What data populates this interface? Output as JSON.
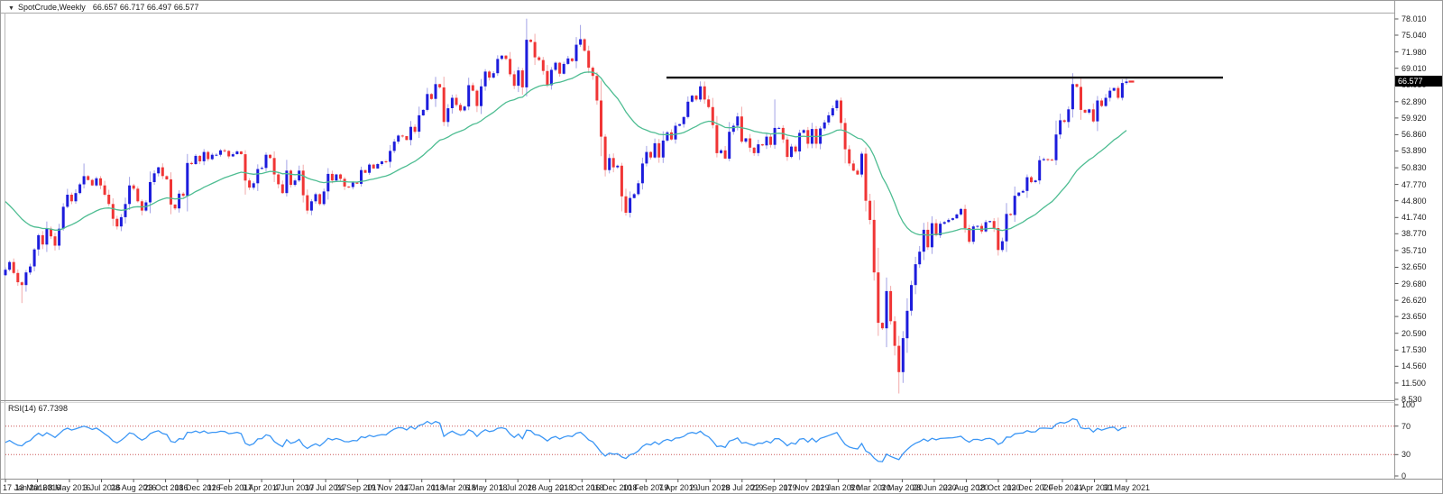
{
  "title": {
    "expander": "▼",
    "symbol": "SpotCrude,Weekly",
    "ohlc": "66.657 66.717 66.497 66.577"
  },
  "indicator": {
    "label": "RSI(14) 67.7398"
  },
  "price_axis": {
    "current": "66.577",
    "labels": [
      "78.010",
      "75.040",
      "71.980",
      "69.010",
      "65.950",
      "62.890",
      "59.920",
      "56.860",
      "53.890",
      "50.830",
      "47.770",
      "44.800",
      "41.740",
      "38.770",
      "35.710",
      "32.650",
      "29.680",
      "26.620",
      "23.650",
      "20.590",
      "17.530",
      "14.560",
      "11.500",
      "8.530"
    ]
  },
  "rsi_axis": {
    "labels": [
      "100",
      "70",
      "30",
      "0"
    ]
  },
  "time_axis": {
    "labels": [
      "17 Jan 2016",
      "13 Mar 2016",
      "8 May 2016",
      "3 Jul 2016",
      "28 Aug 2016",
      "23 Oct 2016",
      "18 Dec 2016",
      "12 Feb 2017",
      "9 Apr 2017",
      "4 Jun 2017",
      "30 Jul 2017",
      "24 Sep 2017",
      "19 Nov 2017",
      "14 Jan 2018",
      "11 Mar 2018",
      "6 May 2018",
      "1 Jul 2018",
      "26 Aug 2018",
      "21 Oct 2018",
      "16 Dec 2018",
      "10 Feb 2019",
      "7 Apr 2019",
      "2 Jun 2019",
      "28 Jul 2019",
      "22 Sep 2019",
      "17 Nov 2019",
      "12 Jan 2020",
      "8 Mar 2020",
      "3 May 2020",
      "28 Jun 2020",
      "23 Aug 2020",
      "18 Oct 2020",
      "13 Dec 2020",
      "7 Feb 2021",
      "4 Apr 2021",
      "30 May 2021"
    ]
  },
  "colors": {
    "bull_body": "#1c1cdc",
    "bear_body": "#f03535",
    "bull_wick": "#a2a2e6",
    "bear_wick": "#f2aaaa",
    "ma_line": "#4ebd92",
    "rsi_line": "#3b96f5",
    "level_line": "#cc5555",
    "trendline": "#151515",
    "border": "#909090",
    "tick": "#555555",
    "price_tag_bg": "#000000",
    "price_tag_text": "#ffffff"
  },
  "chart_data": {
    "type": "candlestick",
    "symbol": "SpotCrude",
    "timeframe": "Weekly",
    "title": "SpotCrude,Weekly",
    "ylim": [
      8.53,
      79.5
    ],
    "x_start_label": "17 Jan 2016",
    "x_end_label": "30 May 2021",
    "grid": false,
    "last_close": 66.577,
    "first_open": 31.2,
    "closes": [
      32.2,
      33.6,
      31.6,
      29.9,
      29.4,
      31.7,
      32.8,
      35.9,
      38.5,
      36.8,
      39.7,
      38.3,
      36.6,
      39.7,
      43.7,
      45.9,
      44.7,
      46.2,
      47.8,
      49.3,
      48.6,
      47.6,
      48.9,
      47.6,
      45.9,
      44.2,
      41.5,
      40.1,
      41.8,
      44.2,
      47.6,
      47.0,
      44.7,
      43.0,
      44.5,
      48.2,
      49.8,
      50.9,
      49.3,
      48.7,
      44.1,
      43.4,
      46.1,
      45.7,
      51.7,
      51.5,
      53.0,
      52.0,
      53.7,
      52.4,
      53.2,
      53.2,
      54.0,
      53.9,
      52.9,
      53.3,
      53.8,
      53.3,
      48.5,
      47.2,
      48.0,
      50.6,
      50.8,
      53.2,
      52.6,
      49.6,
      47.8,
      46.2,
      50.3,
      47.7,
      48.5,
      50.3,
      45.8,
      43.0,
      44.7,
      46.0,
      44.2,
      46.5,
      49.7,
      48.5,
      49.6,
      48.8,
      47.4,
      47.3,
      48.1,
      47.9,
      50.4,
      49.9,
      51.4,
      50.7,
      51.5,
      52.0,
      51.9,
      53.9,
      55.6,
      56.7,
      56.6,
      55.9,
      58.3,
      57.4,
      60.4,
      61.4,
      64.3,
      63.4,
      66.1,
      65.5,
      59.2,
      61.7,
      63.6,
      62.3,
      61.3,
      62.0,
      65.9,
      64.9,
      62.1,
      65.7,
      68.4,
      67.3,
      68.1,
      70.7,
      71.3,
      70.7,
      67.9,
      65.8,
      68.6,
      65.5,
      74.2,
      73.8,
      71.0,
      70.5,
      68.5,
      65.9,
      68.7,
      70.0,
      68.0,
      69.8,
      70.8,
      70.3,
      73.3,
      74.3,
      72.2,
      69.1,
      67.6,
      63.1,
      56.5,
      50.4,
      52.6,
      50.9,
      51.2,
      45.6,
      42.6,
      45.3,
      46.0,
      48.0,
      51.6,
      53.7,
      52.7,
      55.3,
      52.7,
      55.8,
      57.3,
      56.0,
      58.5,
      58.8,
      60.1,
      62.9,
      64.0,
      63.3,
      65.7,
      63.3,
      61.9,
      58.6,
      53.5,
      54.0,
      52.5,
      57.4,
      58.5,
      60.2,
      55.6,
      56.2,
      54.5,
      53.5,
      55.1,
      54.9,
      56.5,
      55.0,
      58.1,
      58.1,
      56.0,
      52.8,
      54.7,
      53.8,
      57.2,
      57.7,
      55.2,
      57.9,
      55.2,
      58.0,
      59.1,
      60.4,
      61.7,
      63.1,
      59.0,
      54.2,
      51.6,
      50.3,
      49.6,
      53.4,
      44.8,
      41.3,
      31.7,
      22.5,
      21.5,
      28.3,
      22.8,
      18.3,
      13.5,
      19.7,
      24.7,
      29.4,
      33.2,
      35.5,
      39.5,
      36.3,
      40.7,
      38.5,
      40.6,
      40.9,
      41.3,
      41.6,
      42.3,
      43.3,
      39.8,
      37.3,
      40.1,
      40.2,
      39.2,
      40.9,
      41.1,
      39.8,
      35.8,
      37.4,
      42.4,
      42.2,
      45.7,
      46.3,
      46.6,
      49.1,
      48.2,
      48.5,
      52.2,
      52.4,
      52.3,
      52.2,
      56.9,
      59.5,
      59.2,
      61.5,
      66.1,
      65.6,
      61.4,
      60.9,
      61.5,
      59.3,
      63.1,
      62.1,
      63.6,
      64.9,
      65.4,
      63.6,
      66.3,
      66.577
    ],
    "extremes": [
      {
        "i": 4,
        "low": 26.1
      },
      {
        "i": 19,
        "high": 51.6
      },
      {
        "i": 139,
        "high": 76.9
      },
      {
        "i": 168,
        "high": 66.6
      },
      {
        "i": 186,
        "high": 63.3
      },
      {
        "i": 216,
        "low": 9.6
      },
      {
        "i": 258,
        "high": 68.1
      },
      {
        "i": 270,
        "high": 67.0
      },
      {
        "i": 271,
        "high": 67.4
      }
    ],
    "ma": {
      "type": "ema",
      "period": 30,
      "init": 45.5
    },
    "resistance_line": {
      "price": 67.3
    },
    "rsi_panel": {
      "type": "line",
      "period": 14,
      "last_value_label": "67.7398",
      "levels": [
        70,
        30
      ],
      "range": [
        0,
        100
      ]
    }
  }
}
